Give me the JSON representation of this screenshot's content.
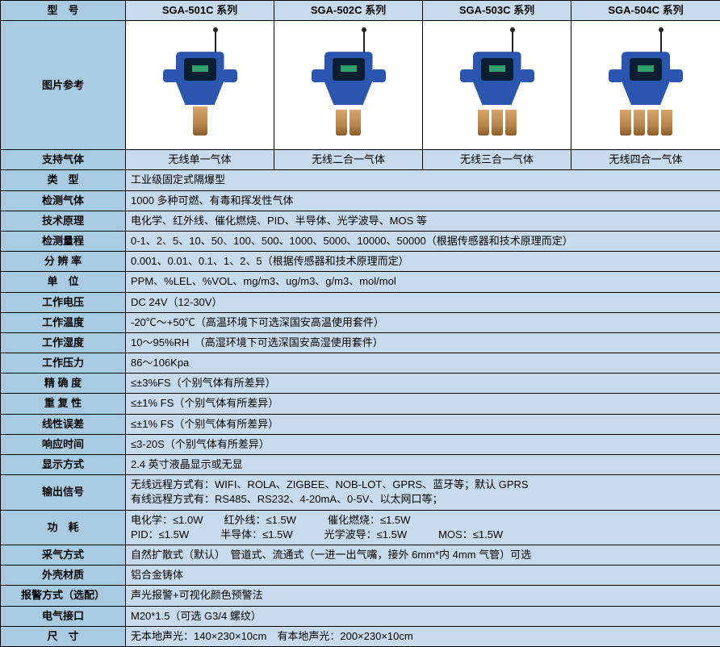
{
  "colors": {
    "header_bg": "#a8cbe2",
    "cell_bg": "#c8dbec",
    "img_bg": "#fefffe",
    "border": "#000000",
    "device_blue": "#2b56b0",
    "screen_dark": "#0a1f33",
    "screen_green": "#2fa06b",
    "probe_brass": "#b8864a"
  },
  "headers": {
    "model": "型　号",
    "models": [
      "SGA-501C 系列",
      "SGA-502C 系列",
      "SGA-503C 系列",
      "SGA-504C 系列"
    ]
  },
  "image_row": {
    "label": "图片参考",
    "probe_counts": [
      1,
      2,
      3,
      4
    ]
  },
  "gas_row": {
    "label": "支持气体",
    "values": [
      "无线单一气体",
      "无线二合一气体",
      "无线三合一气体",
      "无线四合一气体"
    ]
  },
  "spec_rows": [
    {
      "label": "类　型",
      "value": "工业级固定式隔爆型"
    },
    {
      "label": "检测气体",
      "value": "1000 多种可燃、有毒和挥发性气体"
    },
    {
      "label": "技术原理",
      "value": "电化学、红外线、催化燃烧、PID、半导体、光学波导、MOS 等"
    },
    {
      "label": "检测量程",
      "value": "0-1、2、5、10、50、100、500、1000、5000、10000、50000（根据传感器和技术原理而定）"
    },
    {
      "label": "分 辨 率",
      "value": "0.001、0.01、0.1、1、2、5（根据传感器和技术原理而定）"
    },
    {
      "label": "单　位",
      "value": "PPM、%LEL、%VOL、mg/m3、ug/m3、g/m3、mol/mol"
    },
    {
      "label": "工作电压",
      "value": "DC 24V（12-30V）"
    },
    {
      "label": "工作温度",
      "value": "-20℃～+50℃（高温环境下可选深国安高温使用套件）"
    },
    {
      "label": "工作湿度",
      "value": "10～95%RH　（高湿环境下可选深国安高湿使用套件）"
    },
    {
      "label": "工作压力",
      "value": "86～106Kpa"
    },
    {
      "label": "精 确 度",
      "value": "≤±3%FS（个别气体有所差异）"
    },
    {
      "label": "重 复 性",
      "value": "≤±1% FS（个别气体有所差异）"
    },
    {
      "label": "线性误差",
      "value": "≤±1% FS（个别气体有所差异）"
    },
    {
      "label": "响应时间",
      "value": "≤3-20S（个别气体有所差异）"
    },
    {
      "label": "显示方式",
      "value": "2.4 英寸液晶显示或无显"
    },
    {
      "label": "输出信号",
      "value": "无线远程方式有：WIFI、ROLA、ZIGBEE、NOB-LOT、GPRS、蓝牙等；默认 GPRS\n有线远程方式有：RS485、RS232、4-20mA、0-5V、以太网口等；"
    },
    {
      "label": "功　耗",
      "value": "电化学：≤1.0W　　红外线：≤1.5W　　　催化燃烧：≤1.5W\nPID：≤1.5W　　　半导体：≤1.5W　　　光学波导：≤1.5W　　　MOS：≤1.5W"
    },
    {
      "label": "采气方式",
      "value": "自然扩散式（默认）　管道式、流通式（一进一出气嘴，接外 6mm*内 4mm 气管）可选"
    },
    {
      "label": "外壳材质",
      "value": "铝合金铸体"
    },
    {
      "label": "报警方式（选配）",
      "value": "声光报警+可视化颜色预警法"
    },
    {
      "label": "电气接口",
      "value": "M20*1.5（可选 G3/4 螺纹）"
    },
    {
      "label": "尺　寸",
      "value": "无本地声光：140×230×10cm　有本地声光：200×230×10cm"
    }
  ]
}
